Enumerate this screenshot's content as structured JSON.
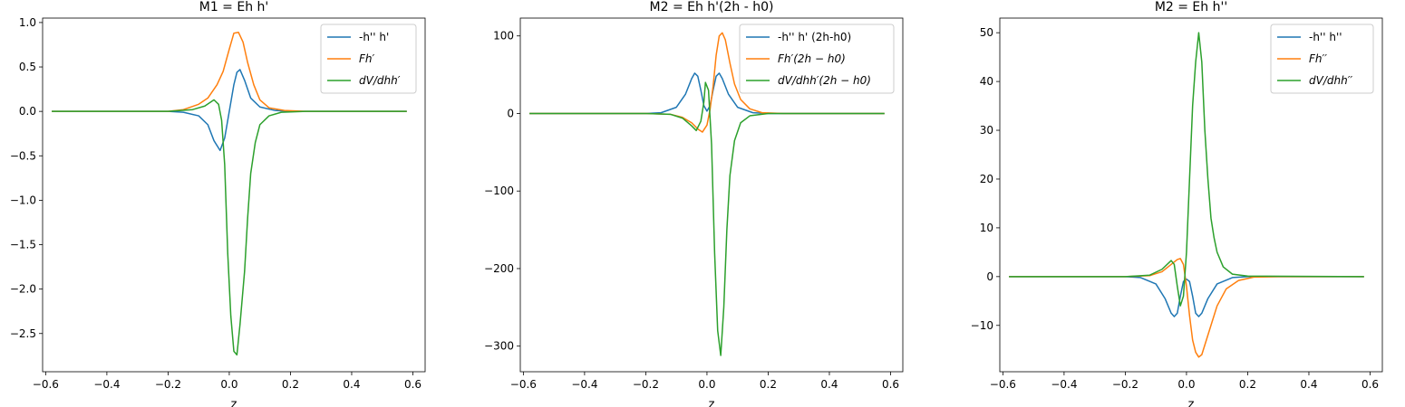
{
  "chart_data": [
    {
      "type": "line",
      "title": "M1 = Eh h'",
      "xlabel": "z",
      "ylabel": "",
      "xlim": [
        -0.61,
        0.64
      ],
      "ylim": [
        -2.93,
        1.05
      ],
      "xticks": [
        -0.6,
        -0.4,
        -0.2,
        0.0,
        0.2,
        0.4,
        0.6
      ],
      "xtick_labels": [
        "−0.6",
        "−0.4",
        "−0.2",
        "0.0",
        "0.2",
        "0.4",
        "0.6"
      ],
      "yticks": [
        1.0,
        0.5,
        0.0,
        -0.5,
        -1.0,
        -1.5,
        -2.0,
        -2.5
      ],
      "ytick_labels": [
        "1.0",
        "0.5",
        "0.0",
        "−0.5",
        "−1.0",
        "−1.5",
        "−2.0",
        "−2.5"
      ],
      "grid": false,
      "legend_position": "top-right",
      "series": [
        {
          "name": "-h'' h'",
          "italic": false,
          "color": "#1f77b4",
          "points": [
            [
              -0.58,
              0.0
            ],
            [
              -0.2,
              0.0
            ],
            [
              -0.15,
              -0.01
            ],
            [
              -0.1,
              -0.05
            ],
            [
              -0.07,
              -0.15
            ],
            [
              -0.05,
              -0.33
            ],
            [
              -0.03,
              -0.44
            ],
            [
              -0.015,
              -0.3
            ],
            [
              0.0,
              0.0
            ],
            [
              0.015,
              0.3
            ],
            [
              0.025,
              0.44
            ],
            [
              0.035,
              0.47
            ],
            [
              0.05,
              0.35
            ],
            [
              0.07,
              0.15
            ],
            [
              0.1,
              0.05
            ],
            [
              0.15,
              0.01
            ],
            [
              0.2,
              0.0
            ],
            [
              0.58,
              0.0
            ]
          ]
        },
        {
          "name": "Fh′",
          "italic": true,
          "color": "#ff7f0e",
          "points": [
            [
              -0.58,
              0.0
            ],
            [
              -0.2,
              0.0
            ],
            [
              -0.15,
              0.02
            ],
            [
              -0.1,
              0.08
            ],
            [
              -0.07,
              0.15
            ],
            [
              -0.04,
              0.3
            ],
            [
              -0.02,
              0.45
            ],
            [
              0.0,
              0.7
            ],
            [
              0.015,
              0.88
            ],
            [
              0.03,
              0.89
            ],
            [
              0.045,
              0.78
            ],
            [
              0.06,
              0.55
            ],
            [
              0.08,
              0.3
            ],
            [
              0.1,
              0.13
            ],
            [
              0.13,
              0.04
            ],
            [
              0.18,
              0.01
            ],
            [
              0.25,
              0.0
            ],
            [
              0.58,
              0.0
            ]
          ]
        },
        {
          "name": "dV/dhh′",
          "italic": true,
          "color": "#2ca02c",
          "points": [
            [
              -0.58,
              0.0
            ],
            [
              -0.2,
              0.0
            ],
            [
              -0.12,
              0.02
            ],
            [
              -0.08,
              0.06
            ],
            [
              -0.05,
              0.13
            ],
            [
              -0.035,
              0.08
            ],
            [
              -0.025,
              -0.1
            ],
            [
              -0.015,
              -0.6
            ],
            [
              -0.005,
              -1.6
            ],
            [
              0.005,
              -2.3
            ],
            [
              0.015,
              -2.7
            ],
            [
              0.025,
              -2.74
            ],
            [
              0.035,
              -2.4
            ],
            [
              0.05,
              -1.8
            ],
            [
              0.06,
              -1.2
            ],
            [
              0.07,
              -0.7
            ],
            [
              0.085,
              -0.35
            ],
            [
              0.1,
              -0.15
            ],
            [
              0.13,
              -0.05
            ],
            [
              0.17,
              -0.01
            ],
            [
              0.25,
              0.0
            ],
            [
              0.58,
              0.0
            ]
          ]
        }
      ]
    },
    {
      "type": "line",
      "title": "M2 = Eh h'(2h - h0)",
      "xlabel": "z",
      "ylabel": "",
      "xlim": [
        -0.61,
        0.64
      ],
      "ylim": [
        -333,
        123
      ],
      "xticks": [
        -0.6,
        -0.4,
        -0.2,
        0.0,
        0.2,
        0.4,
        0.6
      ],
      "xtick_labels": [
        "−0.6",
        "−0.4",
        "−0.2",
        "0.0",
        "0.2",
        "0.4",
        "0.6"
      ],
      "yticks": [
        100,
        0,
        -100,
        -200,
        -300
      ],
      "ytick_labels": [
        "100",
        "0",
        "−100",
        "−200",
        "−300"
      ],
      "grid": false,
      "legend_position": "top-right",
      "series": [
        {
          "name": "-h'' h' (2h-h0)",
          "italic": false,
          "color": "#1f77b4",
          "points": [
            [
              -0.58,
              0.0
            ],
            [
              -0.2,
              0.0
            ],
            [
              -0.15,
              1
            ],
            [
              -0.1,
              8
            ],
            [
              -0.07,
              25
            ],
            [
              -0.05,
              45
            ],
            [
              -0.04,
              52
            ],
            [
              -0.03,
              48
            ],
            [
              -0.02,
              30
            ],
            [
              -0.01,
              10
            ],
            [
              0.0,
              3
            ],
            [
              0.01,
              10
            ],
            [
              0.02,
              30
            ],
            [
              0.03,
              48
            ],
            [
              0.04,
              52
            ],
            [
              0.05,
              45
            ],
            [
              0.07,
              25
            ],
            [
              0.1,
              8
            ],
            [
              0.15,
              1
            ],
            [
              0.2,
              0.0
            ],
            [
              0.58,
              0.0
            ]
          ]
        },
        {
          "name": "Fh′(2h − h0)",
          "italic": true,
          "color": "#ff7f0e",
          "points": [
            [
              -0.58,
              0.0
            ],
            [
              -0.2,
              0.0
            ],
            [
              -0.12,
              -1
            ],
            [
              -0.08,
              -5
            ],
            [
              -0.05,
              -12
            ],
            [
              -0.03,
              -20
            ],
            [
              -0.015,
              -24
            ],
            [
              0.0,
              -15
            ],
            [
              0.01,
              5
            ],
            [
              0.02,
              35
            ],
            [
              0.03,
              75
            ],
            [
              0.04,
              100
            ],
            [
              0.05,
              104
            ],
            [
              0.06,
              95
            ],
            [
              0.075,
              65
            ],
            [
              0.09,
              38
            ],
            [
              0.11,
              18
            ],
            [
              0.14,
              6
            ],
            [
              0.18,
              1
            ],
            [
              0.25,
              0.0
            ],
            [
              0.58,
              0.0
            ]
          ]
        },
        {
          "name": "dV/dhh′(2h − h0)",
          "italic": true,
          "color": "#2ca02c",
          "points": [
            [
              -0.58,
              0.0
            ],
            [
              -0.2,
              0.0
            ],
            [
              -0.12,
              -1
            ],
            [
              -0.08,
              -6
            ],
            [
              -0.05,
              -16
            ],
            [
              -0.035,
              -22
            ],
            [
              -0.02,
              -10
            ],
            [
              -0.01,
              15
            ],
            [
              -0.005,
              40
            ],
            [
              0.005,
              30
            ],
            [
              0.015,
              -40
            ],
            [
              0.025,
              -180
            ],
            [
              0.035,
              -280
            ],
            [
              0.045,
              -312
            ],
            [
              0.055,
              -250
            ],
            [
              0.065,
              -150
            ],
            [
              0.075,
              -80
            ],
            [
              0.09,
              -35
            ],
            [
              0.11,
              -12
            ],
            [
              0.14,
              -3
            ],
            [
              0.2,
              0.0
            ],
            [
              0.58,
              0.0
            ]
          ]
        }
      ]
    },
    {
      "type": "line",
      "title": "M2 = Eh h''",
      "xlabel": "z",
      "ylabel": "",
      "xlim": [
        -0.61,
        0.64
      ],
      "ylim": [
        -19.5,
        53
      ],
      "xticks": [
        -0.6,
        -0.4,
        -0.2,
        0.0,
        0.2,
        0.4,
        0.6
      ],
      "xtick_labels": [
        "−0.6",
        "−0.4",
        "−0.2",
        "0.0",
        "0.2",
        "0.4",
        "0.6"
      ],
      "yticks": [
        50,
        40,
        30,
        20,
        10,
        0,
        -10
      ],
      "ytick_labels": [
        "50",
        "40",
        "30",
        "20",
        "10",
        "0",
        "−10"
      ],
      "grid": false,
      "legend_position": "top-right",
      "series": [
        {
          "name": "-h'' h''",
          "italic": false,
          "color": "#1f77b4",
          "points": [
            [
              -0.58,
              0.0
            ],
            [
              -0.2,
              0.0
            ],
            [
              -0.15,
              -0.2
            ],
            [
              -0.1,
              -1.5
            ],
            [
              -0.07,
              -4.5
            ],
            [
              -0.05,
              -7.5
            ],
            [
              -0.04,
              -8.2
            ],
            [
              -0.03,
              -7.5
            ],
            [
              -0.02,
              -4
            ],
            [
              -0.01,
              -1
            ],
            [
              0.0,
              -0.5
            ],
            [
              0.01,
              -1
            ],
            [
              0.02,
              -4
            ],
            [
              0.03,
              -7.5
            ],
            [
              0.04,
              -8.2
            ],
            [
              0.05,
              -7.5
            ],
            [
              0.07,
              -4.5
            ],
            [
              0.1,
              -1.5
            ],
            [
              0.15,
              -0.2
            ],
            [
              0.2,
              0.0
            ],
            [
              0.58,
              0.0
            ]
          ]
        },
        {
          "name": "Fh′′",
          "italic": true,
          "color": "#ff7f0e",
          "points": [
            [
              -0.58,
              0.0
            ],
            [
              -0.2,
              0.0
            ],
            [
              -0.12,
              0.2
            ],
            [
              -0.08,
              1
            ],
            [
              -0.05,
              2.5
            ],
            [
              -0.03,
              3.5
            ],
            [
              -0.02,
              3.7
            ],
            [
              -0.01,
              2.5
            ],
            [
              0.0,
              -2
            ],
            [
              0.01,
              -8
            ],
            [
              0.02,
              -13
            ],
            [
              0.03,
              -15.5
            ],
            [
              0.04,
              -16.5
            ],
            [
              0.05,
              -16
            ],
            [
              0.06,
              -14
            ],
            [
              0.08,
              -10
            ],
            [
              0.1,
              -6
            ],
            [
              0.13,
              -2.5
            ],
            [
              0.17,
              -0.8
            ],
            [
              0.22,
              -0.1
            ],
            [
              0.3,
              0.0
            ],
            [
              0.58,
              0.0
            ]
          ]
        },
        {
          "name": "dV/dhh′′",
          "italic": true,
          "color": "#2ca02c",
          "points": [
            [
              -0.58,
              0.0
            ],
            [
              -0.2,
              0.0
            ],
            [
              -0.12,
              0.3
            ],
            [
              -0.08,
              1.5
            ],
            [
              -0.05,
              3.3
            ],
            [
              -0.04,
              2.5
            ],
            [
              -0.03,
              -2
            ],
            [
              -0.02,
              -6
            ],
            [
              -0.01,
              -4
            ],
            [
              0.0,
              5
            ],
            [
              0.01,
              20
            ],
            [
              0.02,
              35
            ],
            [
              0.03,
              44
            ],
            [
              0.04,
              50
            ],
            [
              0.05,
              44
            ],
            [
              0.06,
              30
            ],
            [
              0.07,
              20
            ],
            [
              0.08,
              12
            ],
            [
              0.09,
              8
            ],
            [
              0.1,
              5
            ],
            [
              0.12,
              2
            ],
            [
              0.15,
              0.5
            ],
            [
              0.2,
              0.1
            ],
            [
              0.58,
              0.0
            ]
          ]
        }
      ]
    }
  ]
}
